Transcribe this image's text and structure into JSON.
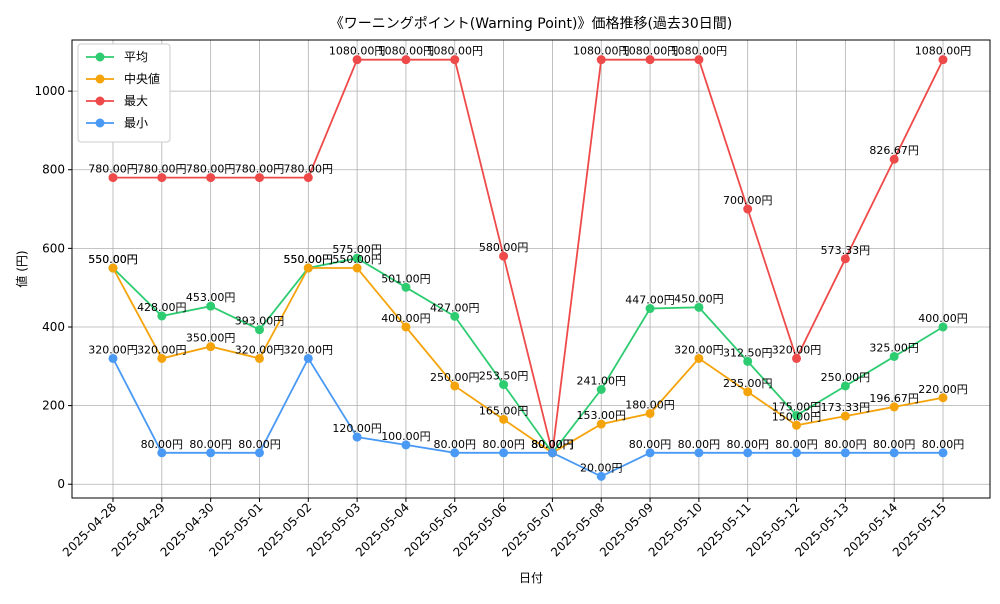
{
  "chart_data": {
    "type": "line",
    "title": "《ワーニングポイント(Warning Point)》価格推移(過去30日間)",
    "xlabel": "日付",
    "ylabel": "値 (円)",
    "ylim": [
      -35,
      1130
    ],
    "yticks": [
      0,
      200,
      400,
      600,
      800,
      1000
    ],
    "grid": true,
    "legend_position": "top-left",
    "x": [
      "2025-04-28",
      "2025-04-29",
      "2025-04-30",
      "2025-05-01",
      "2025-05-02",
      "2025-05-03",
      "2025-05-04",
      "2025-05-05",
      "2025-05-06",
      "2025-05-07",
      "2025-05-08",
      "2025-05-09",
      "2025-05-10",
      "2025-05-11",
      "2025-05-12",
      "2025-05-13",
      "2025-05-14",
      "2025-05-15"
    ],
    "series": [
      {
        "name": "平均",
        "color": "#2ecc71",
        "values": [
          550,
          428,
          453,
          393,
          550,
          575,
          501,
          427,
          253.5,
          80,
          241,
          447,
          450,
          312.5,
          175,
          250,
          325,
          400
        ],
        "labels": [
          "550.00円",
          "428.00円",
          "453.00円",
          "393.00円",
          "550.00円",
          "575.00円",
          "501.00円",
          "427.00円",
          "253.50円",
          "80.00円",
          "241.00円",
          "447.00円",
          "450.00円",
          "312.50円",
          "175.00円",
          "250.00円",
          "325.00円",
          "400.00円"
        ]
      },
      {
        "name": "中央値",
        "color": "#f5a30a",
        "values": [
          550,
          320,
          350,
          320,
          550,
          550,
          400,
          250,
          165,
          80,
          153,
          180,
          320,
          235,
          150,
          173.33,
          196.67,
          220
        ],
        "labels": [
          "550.00円",
          "320.00円",
          "350.00円",
          "320.00円",
          "550.00円",
          "550.00円",
          "400.00円",
          "250.00円",
          "165.00円",
          "80.00円",
          "153.00円",
          "180.00円",
          "320.00円",
          "235.00円",
          "150.00円",
          "173.33円",
          "196.67円",
          "220.00円"
        ]
      },
      {
        "name": "最大",
        "color": "#ef4a4a",
        "values": [
          780,
          780,
          780,
          780,
          780,
          1080,
          1080,
          1080,
          580,
          80,
          1080,
          1080,
          1080,
          700,
          320,
          573.33,
          826.67,
          1080
        ],
        "labels": [
          "780.00円",
          "780.00円",
          "780.00円",
          "780.00円",
          "780.00円",
          "1080.00円",
          "1080.00円",
          "1080.00円",
          "580.00円",
          "80.00円",
          "1080.00円",
          "1080.00円",
          "1080.00円",
          "700.00円",
          "320.00円",
          "573.33円",
          "826.67円",
          "1080.00円"
        ]
      },
      {
        "name": "最小",
        "color": "#4a9af5",
        "values": [
          320,
          80,
          80,
          80,
          320,
          120,
          100,
          80,
          80,
          80,
          20,
          80,
          80,
          80,
          80,
          80,
          80,
          80
        ],
        "labels": [
          "320.00円",
          "80.00円",
          "80.00円",
          "80.00円",
          "320.00円",
          "120.00円",
          "100.00円",
          "80.00円",
          "80.00円",
          "80.00円",
          "20.00円",
          "80.00円",
          "80.00円",
          "80.00円",
          "80.00円",
          "80.00円",
          "80.00円",
          "80.00円"
        ]
      }
    ]
  }
}
